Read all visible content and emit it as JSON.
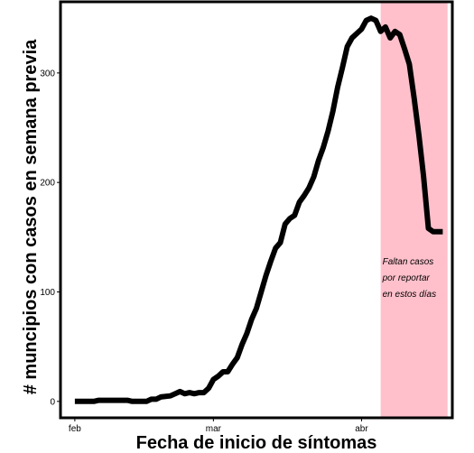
{
  "chart_data": {
    "type": "line",
    "xlabel": "Fecha de inicio de síntomas",
    "ylabel": "# muncipios con casos en semana previa",
    "xlim": [
      "2020-01-29",
      "2020-04-20"
    ],
    "ylim": [
      -15,
      365
    ],
    "x_ticks": [
      {
        "date": "2020-02-01",
        "label": "feb"
      },
      {
        "date": "2020-03-01",
        "label": "mar"
      },
      {
        "date": "2020-04-01",
        "label": "abr"
      }
    ],
    "y_ticks": [
      0,
      100,
      200,
      300
    ],
    "grid": false,
    "shaded_region": {
      "start": "2020-04-05",
      "end": "2020-04-19",
      "color": "#ffc0cb",
      "annotation": [
        "Faltan casos",
        "por reportar",
        "en estos días"
      ]
    },
    "line_color": "#000000",
    "series": [
      {
        "x": [
          "2020-02-01",
          "2020-02-05",
          "2020-02-06",
          "2020-02-12",
          "2020-02-13",
          "2020-02-16",
          "2020-02-17",
          "2020-02-18",
          "2020-02-19",
          "2020-02-21",
          "2020-02-22",
          "2020-02-23",
          "2020-02-24",
          "2020-02-25",
          "2020-02-26",
          "2020-02-27",
          "2020-02-28",
          "2020-02-29",
          "2020-03-01",
          "2020-03-02",
          "2020-03-03",
          "2020-03-04",
          "2020-03-05",
          "2020-03-06",
          "2020-03-07",
          "2020-03-08",
          "2020-03-09",
          "2020-03-10",
          "2020-03-11",
          "2020-03-12",
          "2020-03-13",
          "2020-03-14",
          "2020-03-15",
          "2020-03-16",
          "2020-03-17",
          "2020-03-18",
          "2020-03-19",
          "2020-03-20",
          "2020-03-21",
          "2020-03-22",
          "2020-03-23",
          "2020-03-24",
          "2020-03-25",
          "2020-03-26",
          "2020-03-27",
          "2020-03-28",
          "2020-03-29",
          "2020-03-30",
          "2020-03-31",
          "2020-04-01",
          "2020-04-02",
          "2020-04-03",
          "2020-04-04",
          "2020-04-05",
          "2020-04-06",
          "2020-04-07",
          "2020-04-08",
          "2020-04-09",
          "2020-04-10",
          "2020-04-11",
          "2020-04-12",
          "2020-04-13",
          "2020-04-14",
          "2020-04-15",
          "2020-04-16",
          "2020-04-17",
          "2020-04-18"
        ],
        "values": [
          0,
          0,
          1,
          1,
          0,
          0,
          2,
          2,
          4,
          5,
          7,
          9,
          7,
          8,
          7,
          8,
          8,
          12,
          20,
          23,
          27,
          27,
          34,
          40,
          52,
          62,
          75,
          85,
          100,
          115,
          128,
          140,
          145,
          162,
          167,
          170,
          182,
          188,
          195,
          205,
          220,
          232,
          247,
          265,
          287,
          305,
          324,
          332,
          336,
          340,
          348,
          350,
          348,
          338,
          342,
          332,
          338,
          335,
          322,
          308,
          277,
          243,
          205,
          158,
          155,
          155,
          155
        ]
      }
    ]
  }
}
